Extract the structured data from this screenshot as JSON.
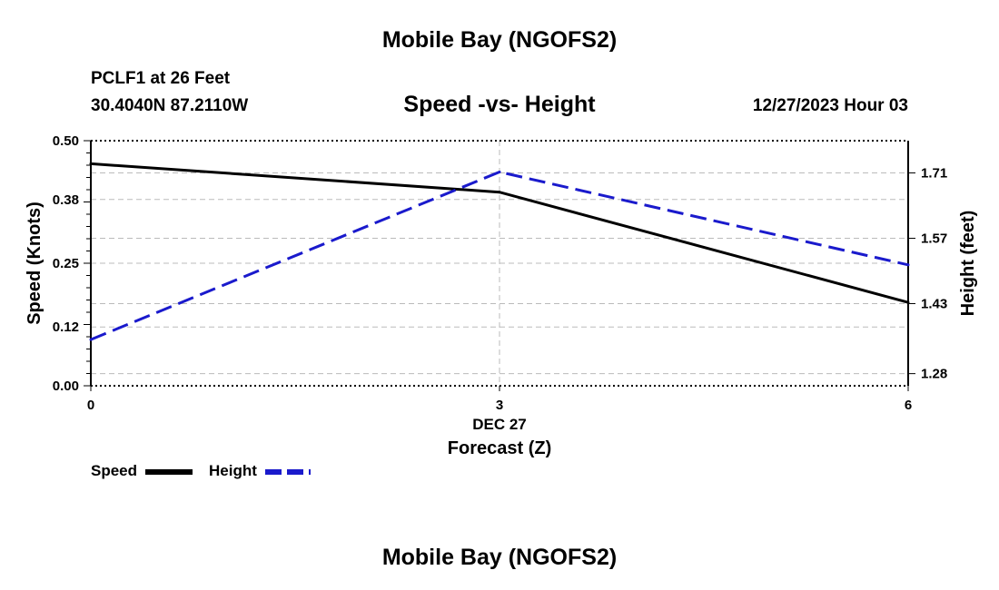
{
  "header": {
    "title": "Mobile Bay (NGOFS2)",
    "station": "PCLF1 at 26 Feet",
    "coords": "30.4040N  87.2110W",
    "date_hour": "12/27/2023 Hour 03",
    "footer_title": "Mobile Bay (NGOFS2)"
  },
  "colors": {
    "speed": "#000000",
    "height": "#1a1acc",
    "grid": "#bbbbbb"
  },
  "chart_data": {
    "type": "line",
    "title": "Speed -vs- Height",
    "xlabel": "Forecast (Z)",
    "x_date_label": "DEC 27",
    "ylabel": "Speed (Knots)",
    "y2label": "Height (feet)",
    "x": [
      0,
      3,
      6
    ],
    "x_ticks": [
      0,
      3,
      6
    ],
    "x_tick_labels": [
      "0",
      "3",
      "6"
    ],
    "xlim": [
      0,
      6
    ],
    "ylim": [
      0.0,
      0.5
    ],
    "y_ticks": [
      0.0,
      0.12,
      0.25,
      0.38,
      0.5
    ],
    "y_tick_labels": [
      "0.00",
      "0.12",
      "0.25",
      "0.38",
      "0.50"
    ],
    "y2lim": [
      1.254,
      1.779
    ],
    "y2_ticks": [
      1.28,
      1.43,
      1.57,
      1.71
    ],
    "y2_tick_labels": [
      "1.28",
      "1.43",
      "1.57",
      "1.71"
    ],
    "series": [
      {
        "name": "Speed",
        "axis": "left",
        "style": "solid",
        "values": [
          0.453,
          0.395,
          0.17
        ]
      },
      {
        "name": "Height",
        "axis": "right",
        "style": "dashed",
        "values": [
          1.353,
          1.712,
          1.513
        ]
      }
    ],
    "legend": [
      "Speed",
      "Height"
    ],
    "legend_position": "bottom-left"
  }
}
